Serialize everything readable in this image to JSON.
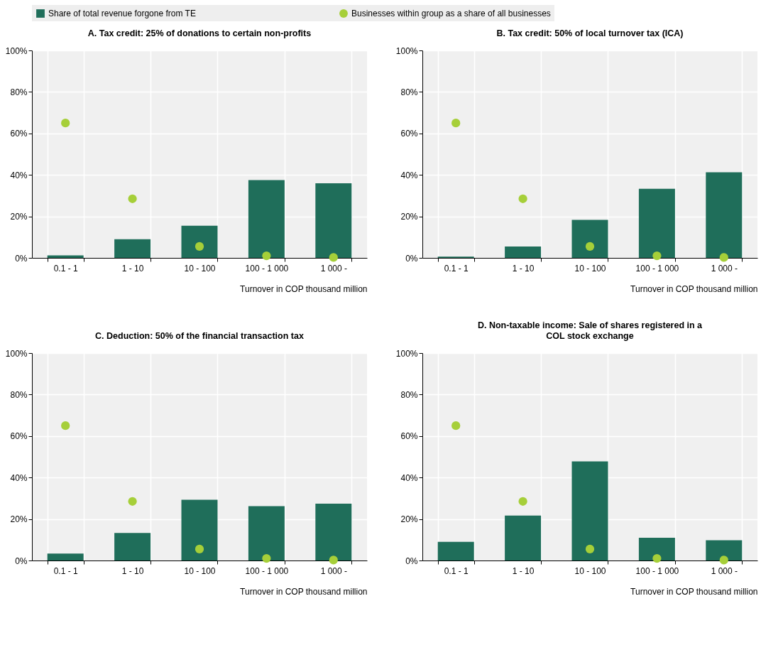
{
  "chart_data": [
    {
      "type": "bar",
      "title": "A. Tax credit: 25% of donations to certain non-profits",
      "xlabel": "Turnover in COP thousand million",
      "categories": [
        "0.1 - 1",
        "1 - 10",
        "10 - 100",
        "100 - 1 000",
        "1 000 -"
      ],
      "ylim": [
        0,
        100
      ],
      "yticks": [
        {
          "value": 0,
          "label": "0%"
        },
        {
          "value": 20,
          "label": "20%"
        },
        {
          "value": 40,
          "label": "40%"
        },
        {
          "value": 60,
          "label": "60%"
        },
        {
          "value": 80,
          "label": "80%"
        },
        {
          "value": 100,
          "label": "100%"
        }
      ],
      "grid": true,
      "legend": "top",
      "marker": "circle",
      "series": [
        {
          "name": "Share of total revenue forgone from TE",
          "type": "bar",
          "color": "#1f6e5a",
          "values": [
            1.2,
            9,
            15.5,
            37.5,
            36
          ]
        },
        {
          "name": "Businesses within group as a share of all businesses",
          "type": "scatter",
          "color": "#a6cf39",
          "values": [
            65,
            28.5,
            5.5,
            1,
            0.2
          ]
        }
      ]
    },
    {
      "type": "bar",
      "title": "B. Tax credit: 50% of local turnover tax (ICA)",
      "xlabel": "Turnover in COP thousand million",
      "categories": [
        "0.1 - 1",
        "1 - 10",
        "10 - 100",
        "100 - 1 000",
        "1 000 -"
      ],
      "ylim": [
        0,
        100
      ],
      "yticks": [
        {
          "value": 0,
          "label": "0%"
        },
        {
          "value": 20,
          "label": "20%"
        },
        {
          "value": 40,
          "label": "40%"
        },
        {
          "value": 60,
          "label": "60%"
        },
        {
          "value": 80,
          "label": "80%"
        },
        {
          "value": 100,
          "label": "100%"
        }
      ],
      "grid": true,
      "marker": "circle",
      "series": [
        {
          "type": "bar",
          "color": "#1f6e5a",
          "values": [
            0.6,
            5.5,
            18.3,
            33.3,
            41.3
          ]
        },
        {
          "type": "scatter",
          "color": "#a6cf39",
          "values": [
            65,
            28.5,
            5.5,
            1,
            0.2
          ]
        }
      ]
    },
    {
      "type": "bar",
      "title": "C. Deduction: 50% of the financial transaction tax",
      "xlabel": "Turnover in COP thousand million",
      "categories": [
        "0.1 - 1",
        "1 - 10",
        "10 - 100",
        "100 - 1 000",
        "1 000 -"
      ],
      "ylim": [
        0,
        100
      ],
      "yticks": [
        {
          "value": 0,
          "label": "0%"
        },
        {
          "value": 20,
          "label": "20%"
        },
        {
          "value": 40,
          "label": "40%"
        },
        {
          "value": 60,
          "label": "60%"
        },
        {
          "value": 80,
          "label": "80%"
        },
        {
          "value": 100,
          "label": "100%"
        }
      ],
      "grid": true,
      "marker": "circle",
      "series": [
        {
          "type": "bar",
          "color": "#1f6e5a",
          "values": [
            3.3,
            13.3,
            29.3,
            26.2,
            27.4
          ]
        },
        {
          "type": "scatter",
          "color": "#a6cf39",
          "values": [
            65,
            28.5,
            5.5,
            1,
            0.2
          ]
        }
      ]
    },
    {
      "type": "bar",
      "title": "D. Non-taxable income: Sale of shares registered in a COL stock exchange",
      "xlabel": "Turnover in COP thousand million",
      "categories": [
        "0.1 - 1",
        "1 - 10",
        "10 - 100",
        "100 - 1 000",
        "1 000 -"
      ],
      "ylim": [
        0,
        100
      ],
      "yticks": [
        {
          "value": 0,
          "label": "0%"
        },
        {
          "value": 20,
          "label": "20%"
        },
        {
          "value": 40,
          "label": "40%"
        },
        {
          "value": 60,
          "label": "60%"
        },
        {
          "value": 80,
          "label": "80%"
        },
        {
          "value": 100,
          "label": "100%"
        }
      ],
      "grid": true,
      "marker": "circle",
      "series": [
        {
          "type": "bar",
          "color": "#1f6e5a",
          "values": [
            9,
            21.7,
            47.8,
            11,
            9.8
          ]
        },
        {
          "type": "scatter",
          "color": "#a6cf39",
          "values": [
            65,
            28.5,
            5.5,
            1,
            0.2
          ]
        }
      ]
    }
  ]
}
